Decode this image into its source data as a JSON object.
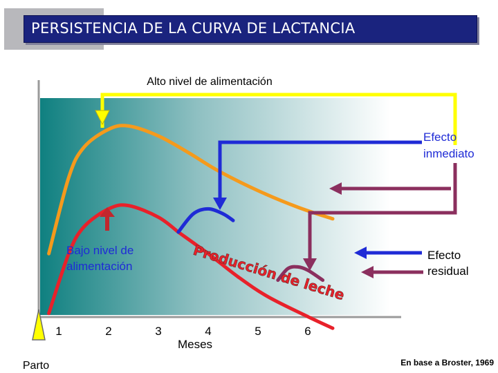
{
  "slide": {
    "title": "PERSISTENCIA DE LA CURVA DE LACTANCIA",
    "source": "En base a Broster, 1969"
  },
  "colors": {
    "title_bar": "#1a237e",
    "high_feed_curve": "#f59a1c",
    "low_feed_curve": "#e8212a",
    "low_feed_arrow": "#c1272d",
    "high_feed_arrow": "#ffff00",
    "immediate_effect_arrow": "#1f2bd6",
    "residual_effect_arrow": "#8b2f5e",
    "gradient_left": "#0f8080",
    "gradient_right": "#ffffff"
  },
  "chart_data": {
    "type": "line",
    "title": "PERSISTENCIA DE LA CURVA DE LACTANCIA",
    "xlabel": "Meses",
    "ylabel": "",
    "x_ticks": [
      "1",
      "2",
      "3",
      "4",
      "5",
      "6"
    ],
    "start_label": "Parto",
    "grid": false,
    "series": [
      {
        "name": "Alto nivel de alimentación",
        "color": "#f59a1c",
        "points": [
          [
            0.8,
            22
          ],
          [
            1.2,
            68
          ],
          [
            1.5,
            86
          ],
          [
            2.0,
            97
          ],
          [
            2.4,
            99
          ],
          [
            3.0,
            93
          ],
          [
            3.6,
            83
          ],
          [
            4.2,
            72
          ],
          [
            5.0,
            60
          ],
          [
            5.8,
            50
          ],
          [
            6.5,
            43
          ]
        ]
      },
      {
        "name": "Bajo nivel de alimentación",
        "color": "#e8212a",
        "points": [
          [
            0.8,
            -14
          ],
          [
            1.2,
            22
          ],
          [
            1.5,
            38
          ],
          [
            2.0,
            49
          ],
          [
            2.4,
            51
          ],
          [
            3.0,
            44
          ],
          [
            3.4,
            35
          ]
        ]
      },
      {
        "name": "Producción de leche",
        "color": "#e8212a",
        "points": [
          [
            3.4,
            35
          ],
          [
            4.0,
            22
          ],
          [
            4.6,
            8
          ],
          [
            5.2,
            -4
          ],
          [
            6.0,
            -16
          ],
          [
            6.5,
            -23
          ]
        ]
      },
      {
        "name": "",
        "color": "#1f2bd6",
        "points": [
          [
            3.4,
            35
          ],
          [
            3.7,
            46
          ],
          [
            4.0,
            49
          ],
          [
            4.3,
            46
          ],
          [
            4.5,
            42
          ]
        ]
      },
      {
        "name": "",
        "color": "#8b2f5e",
        "points": [
          [
            5.4,
            6
          ],
          [
            5.6,
            13
          ],
          [
            5.8,
            14
          ],
          [
            6.0,
            12
          ],
          [
            6.3,
            6
          ]
        ]
      }
    ],
    "annotations": {
      "high_feed": "Alto nivel de alimentación",
      "low_feed": "Bajo nivel de alimentación",
      "immediate_effect": "Efecto inmediato",
      "residual_effect": "Efecto residual",
      "milk_production": "Producción de leche"
    }
  }
}
